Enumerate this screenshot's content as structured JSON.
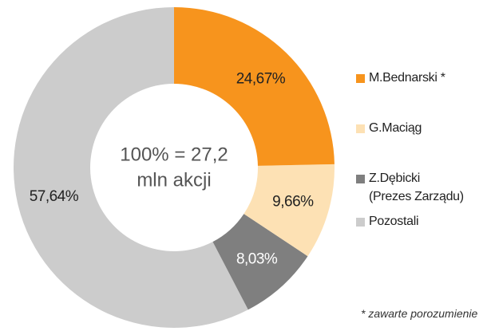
{
  "chart_data": {
    "type": "donut",
    "categories": [
      "M.Bednarski *",
      "G.Maciąg",
      "Z.Dębicki\n(Prezes Zarządu)",
      "Pozostali"
    ],
    "values": [
      24.67,
      9.66,
      8.03,
      57.64
    ],
    "value_labels": [
      "24,67%",
      "9,66%",
      "8,03%",
      "57,64%"
    ],
    "colors": [
      "#f7941d",
      "#fde1b4",
      "#7f7f7f",
      "#cccccc"
    ],
    "label_colors": [
      "#222222",
      "#222222",
      "#ffffff",
      "#222222"
    ],
    "center_text": [
      "100% = 27,2",
      "mln akcji"
    ],
    "footnote": "* zawarte porozumienie"
  }
}
